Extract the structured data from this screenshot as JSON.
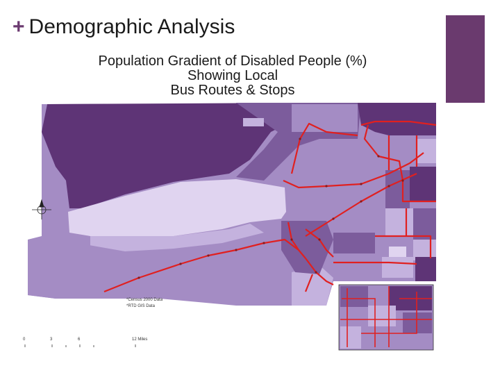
{
  "slide": {
    "title_prefix": "+",
    "title": "Demographic Analysis",
    "accent_color": "#6a3a6e"
  },
  "map": {
    "title_lines": [
      "Population Gradient of Disabled People (%)",
      "Showing Local",
      "Bus Routes & Stops"
    ],
    "credits": [
      "*Census 2000 Data",
      "*RTD GIS Data"
    ],
    "scale_labels": [
      "0",
      "3",
      "6",
      "12 Miles"
    ],
    "north_arrow_icon": "compass-rose-icon",
    "colors": {
      "darkest": "#5e3476",
      "dark": "#7c5c9c",
      "medium": "#a48cc4",
      "light": "#c4b2de",
      "lightest": "#e0d4f0",
      "route": "#e02020"
    }
  }
}
